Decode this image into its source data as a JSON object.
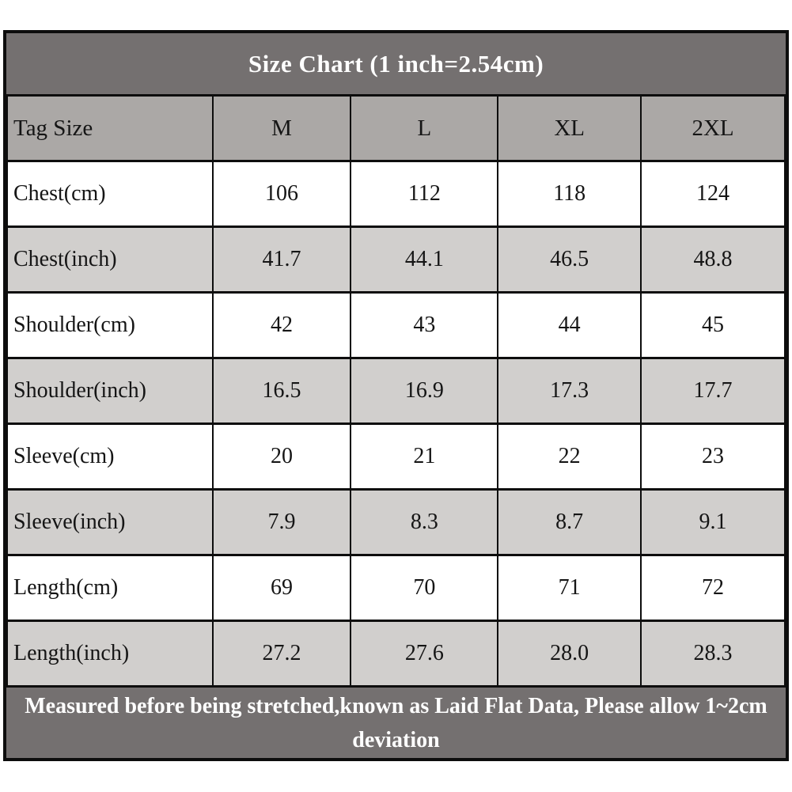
{
  "title": "Size Chart (1 inch=2.54cm)",
  "table": {
    "columns": [
      "Tag Size",
      "M",
      "L",
      "XL",
      "2XL"
    ],
    "rows": [
      {
        "label": "Chest(cm)",
        "values": [
          "106",
          "112",
          "118",
          "124"
        ]
      },
      {
        "label": "Chest(inch)",
        "values": [
          "41.7",
          "44.1",
          "46.5",
          "48.8"
        ]
      },
      {
        "label": "Shoulder(cm)",
        "values": [
          "42",
          "43",
          "44",
          "45"
        ]
      },
      {
        "label": "Shoulder(inch)",
        "values": [
          "16.5",
          "16.9",
          "17.3",
          "17.7"
        ]
      },
      {
        "label": "Sleeve(cm)",
        "values": [
          "20",
          "21",
          "22",
          "23"
        ]
      },
      {
        "label": "Sleeve(inch)",
        "values": [
          "7.9",
          "8.3",
          "8.7",
          "9.1"
        ]
      },
      {
        "label": "Length(cm)",
        "values": [
          "69",
          "70",
          "71",
          "72"
        ]
      },
      {
        "label": "Length(inch)",
        "values": [
          "27.2",
          "27.6",
          "28.0",
          "28.3"
        ]
      }
    ]
  },
  "footer": {
    "note": "Measured before being stretched,known as Laid Flat Data, Please allow 1~2cm deviation"
  },
  "colors": {
    "band_background": "#747070",
    "header_row_background": "#aba8a6",
    "alt_row_background": "#d1cfcd",
    "row_background": "#ffffff",
    "border": "#0d0d0d",
    "band_text": "#ffffff",
    "cell_text": "#151515"
  }
}
